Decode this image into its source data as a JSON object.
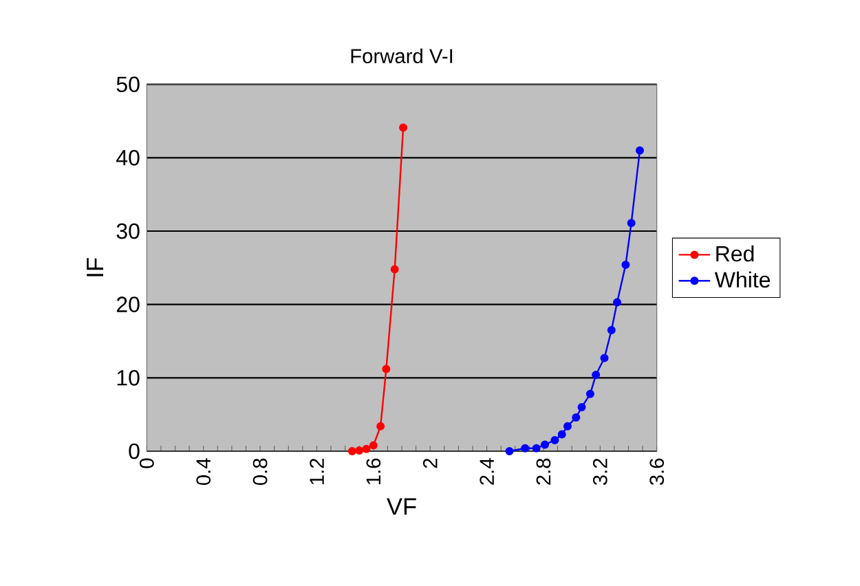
{
  "chart_data": {
    "type": "line",
    "title": "Forward V-I",
    "xlabel": "VF",
    "ylabel": "IF",
    "xlim": [
      0,
      3.6
    ],
    "ylim": [
      0,
      50
    ],
    "xticks": [
      0,
      0.4,
      0.8,
      1.2,
      1.6,
      2,
      2.4,
      2.8,
      3.2,
      3.6
    ],
    "yticks": [
      0,
      10,
      20,
      30,
      40,
      50
    ],
    "grid": "y",
    "legend": "right",
    "marker": "circle",
    "line_style": "solid",
    "series": [
      {
        "name": "Red",
        "color": "#ff0000",
        "x": [
          1.45,
          1.5,
          1.55,
          1.6,
          1.65,
          1.69,
          1.75,
          1.81
        ],
        "values": [
          0,
          0.1,
          0.3,
          0.8,
          3.4,
          11.2,
          24.8,
          44.1
        ]
      },
      {
        "name": "White",
        "color": "#0000ff",
        "x": [
          2.56,
          2.67,
          2.75,
          2.81,
          2.88,
          2.93,
          2.97,
          3.03,
          3.07,
          3.13,
          3.17,
          3.23,
          3.28,
          3.32,
          3.38,
          3.42,
          3.48
        ],
        "values": [
          0,
          0.4,
          0.4,
          0.9,
          1.5,
          2.3,
          3.4,
          4.6,
          6.0,
          7.8,
          10.4,
          12.7,
          16.5,
          20.3,
          25.4,
          31.1,
          41.0
        ]
      }
    ]
  }
}
